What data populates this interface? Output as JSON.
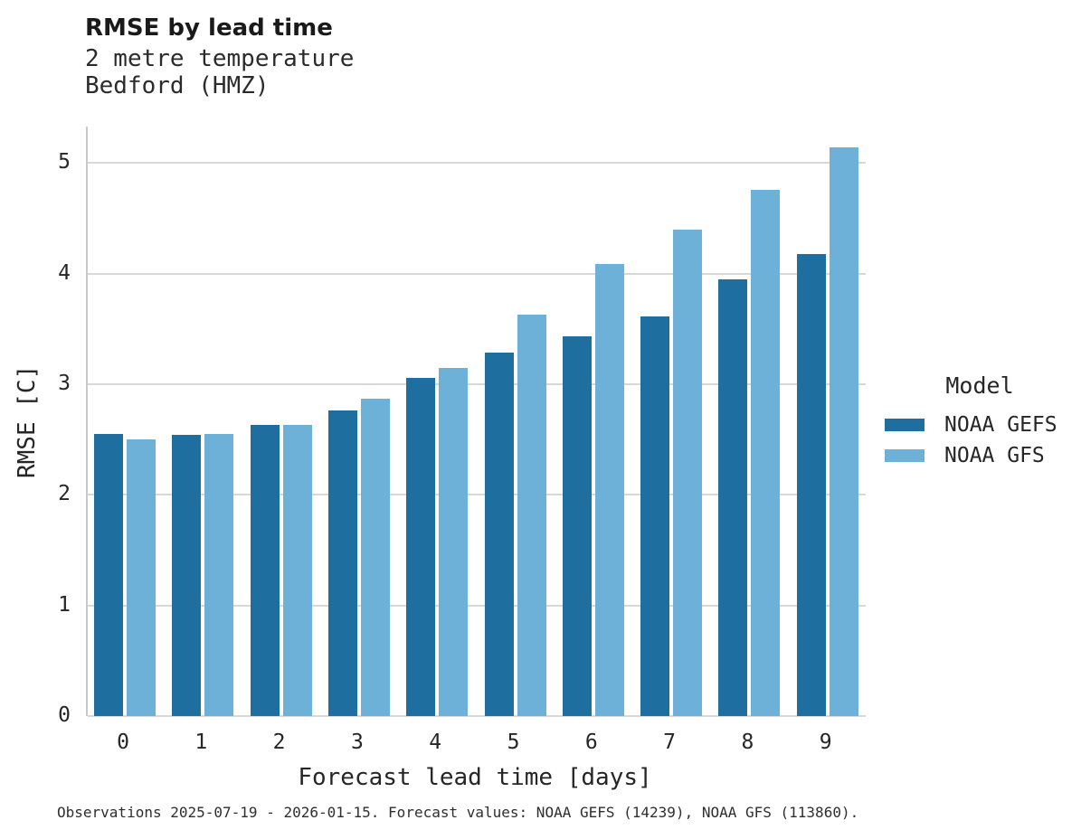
{
  "header": {
    "title": "RMSE by lead time",
    "subtitle_line1": "2 metre temperature",
    "subtitle_line2": "Bedford (HMZ)"
  },
  "footer": {
    "text": "Observations 2025-07-19 - 2026-01-15. Forecast values: NOAA GEFS (14239), NOAA GFS (113860)."
  },
  "colors": {
    "noaa_gefs": "#1e6f9f",
    "noaa_gfs": "#6db1d8",
    "gridline": "#d8d8d8",
    "spine": "#c9c9c9",
    "text": "#262626"
  },
  "chart_data": {
    "type": "bar",
    "title": "RMSE by lead time",
    "subtitle": [
      "2 metre temperature",
      "Bedford (HMZ)"
    ],
    "categories": [
      "0",
      "1",
      "2",
      "3",
      "4",
      "5",
      "6",
      "7",
      "8",
      "9"
    ],
    "series": [
      {
        "name": "NOAA GEFS",
        "color": "#1e6f9f",
        "values": [
          2.55,
          2.54,
          2.63,
          2.76,
          3.06,
          3.29,
          3.43,
          3.61,
          3.95,
          4.18
        ]
      },
      {
        "name": "NOAA GFS",
        "color": "#6db1d8",
        "values": [
          2.5,
          2.55,
          2.63,
          2.87,
          3.15,
          3.63,
          4.09,
          4.4,
          4.76,
          5.14
        ]
      }
    ],
    "xlabel": "Forecast lead time [days]",
    "ylabel": "RMSE [C]",
    "ylim": [
      0,
      5.33
    ],
    "yticks": [
      0,
      1,
      2,
      3,
      4,
      5
    ],
    "grid": "horizontal",
    "legend_title": "Model",
    "legend_position": "right",
    "caption": "Observations 2025-07-19 - 2026-01-15. Forecast values: NOAA GEFS (14239), NOAA GFS (113860)."
  }
}
